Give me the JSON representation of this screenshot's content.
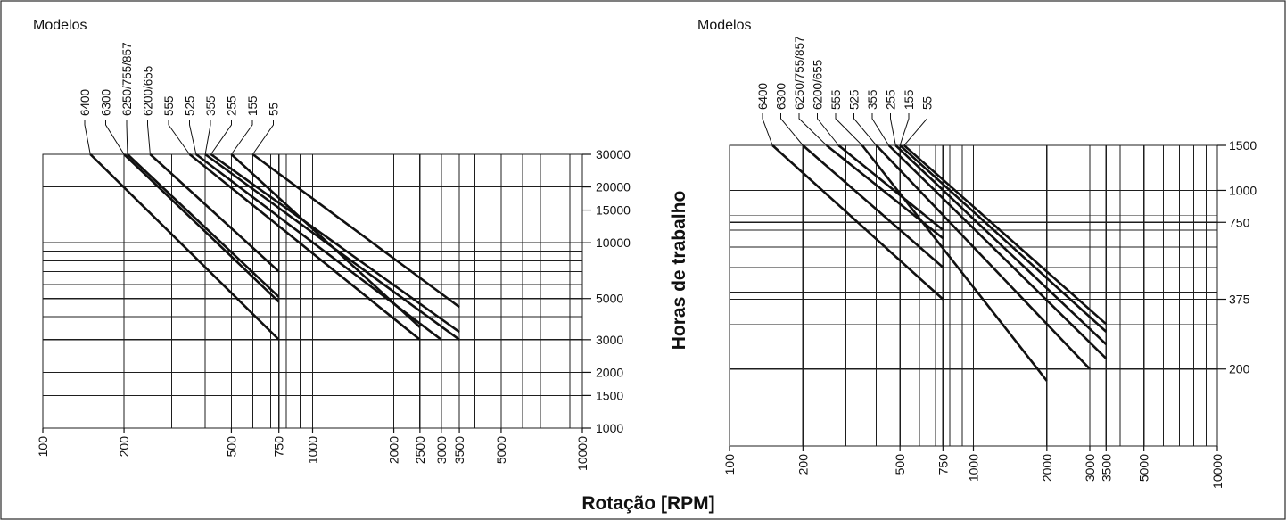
{
  "xlabel": "Rotação [RPM]",
  "ylabel": "Horas de trabalho",
  "chart_data": [
    {
      "type": "line",
      "id": "left",
      "models_label": "Modelos",
      "xscale": "log",
      "yscale": "log",
      "xlim": [
        100,
        10000
      ],
      "ylim": [
        1000,
        30000
      ],
      "x_ticks": [
        100,
        200,
        500,
        750,
        1000,
        2000,
        2500,
        3000,
        3500,
        5000,
        10000
      ],
      "y_ticks": [
        1000,
        1500,
        2000,
        3000,
        5000,
        10000,
        15000,
        20000,
        30000
      ],
      "grid": true,
      "series": [
        {
          "name": "6400",
          "points": [
            [
              150,
              30000
            ],
            [
              750,
              3000
            ]
          ]
        },
        {
          "name": "6300",
          "points": [
            [
              200,
              30000
            ],
            [
              750,
              4800
            ]
          ]
        },
        {
          "name": "6250/755/857",
          "points": [
            [
              206,
              30000
            ],
            [
              750,
              5100
            ]
          ]
        },
        {
          "name": "6200/655",
          "points": [
            [
              250,
              30000
            ],
            [
              750,
              7000
            ]
          ]
        },
        {
          "name": "555",
          "points": [
            [
              350,
              30000
            ],
            [
              2500,
              3000
            ]
          ]
        },
        {
          "name": "525",
          "points": [
            [
              370,
              30000
            ],
            [
              3000,
              3000
            ]
          ]
        },
        {
          "name": "355",
          "points": [
            [
              400,
              30000
            ],
            [
              3500,
              3000
            ]
          ]
        },
        {
          "name": "255",
          "points": [
            [
              420,
              30000
            ],
            [
              3500,
              3300
            ]
          ]
        },
        {
          "name": "155",
          "points": [
            [
              500,
              30000
            ],
            [
              2500,
              3500
            ]
          ]
        },
        {
          "name": "55",
          "points": [
            [
              600,
              30000
            ],
            [
              3500,
              4500
            ]
          ]
        }
      ]
    },
    {
      "type": "line",
      "id": "right",
      "models_label": "Modelos",
      "xscale": "log",
      "yscale": "log",
      "xlim": [
        100,
        10000
      ],
      "ylim": [
        100,
        1500
      ],
      "x_ticks": [
        100,
        200,
        500,
        750,
        1000,
        2000,
        3000,
        3500,
        5000,
        10000
      ],
      "y_ticks": [
        200,
        375,
        750,
        1000,
        1500
      ],
      "y_tick_labels": [
        "200",
        "375",
        "750",
        "1000",
        "1500"
      ],
      "grid": true,
      "series": [
        {
          "name": "6400",
          "points": [
            [
              150,
              1500
            ],
            [
              750,
              375
            ]
          ]
        },
        {
          "name": "6300",
          "points": [
            [
              200,
              1500
            ],
            [
              750,
              500
            ]
          ]
        },
        {
          "name": "6250/755/857",
          "points": [
            [
              250,
              1500
            ],
            [
              750,
              650
            ]
          ]
        },
        {
          "name": "6200/655",
          "points": [
            [
              280,
              1500
            ],
            [
              750,
              700
            ]
          ]
        },
        {
          "name": "555",
          "points": [
            [
              350,
              1500
            ],
            [
              2000,
              180
            ]
          ]
        },
        {
          "name": "525",
          "points": [
            [
              400,
              1500
            ],
            [
              3000,
              200
            ]
          ]
        },
        {
          "name": "355",
          "points": [
            [
              450,
              1500
            ],
            [
              3500,
              220
            ]
          ]
        },
        {
          "name": "255",
          "points": [
            [
              480,
              1500
            ],
            [
              3500,
              250
            ]
          ]
        },
        {
          "name": "155",
          "points": [
            [
              500,
              1500
            ],
            [
              3500,
              280
            ]
          ]
        },
        {
          "name": "55",
          "points": [
            [
              520,
              1500
            ],
            [
              3500,
              300
            ]
          ]
        }
      ]
    }
  ]
}
